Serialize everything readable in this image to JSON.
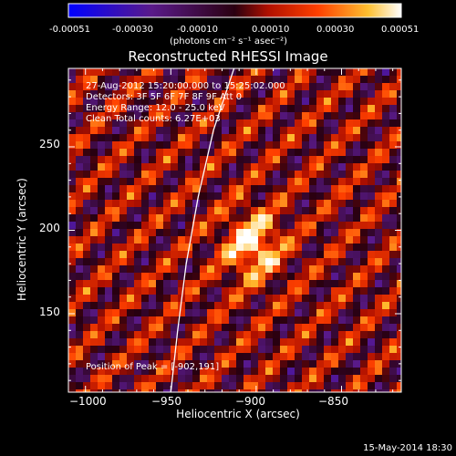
{
  "chart_data": {
    "type": "heatmap",
    "title": "Reconstructed RHESSI Image",
    "xlabel": "Heliocentric X (arcsec)",
    "ylabel": "Heliocentric Y (arcsec)",
    "xlim": [
      -1010,
      -815
    ],
    "ylim": [
      103,
      297
    ],
    "x_ticks": [
      "−1000",
      "−950",
      "−900",
      "−850"
    ],
    "x_tick_values": [
      -1000,
      -950,
      -900,
      -850
    ],
    "y_ticks": [
      "150",
      "200",
      "250"
    ],
    "y_tick_values": [
      150,
      200,
      250
    ],
    "colorbar": {
      "ticks": [
        "-0.00051",
        "-0.00030",
        "-0.00010",
        "0.00010",
        "0.00030",
        "0.00051"
      ],
      "unit_label": "(photons cm⁻² s⁻¹ asec⁻²)",
      "range": [
        -0.00051,
        0.00051
      ]
    },
    "info_lines": [
      "27-Aug-2012 15:20:00.000 to 15:25:02.000",
      "Detectors: 3F 5F 6F 7F 8F 9F Att 0",
      "Energy Range: 12.0 - 25.0 keV",
      "Clean    Total counts: 6.27E+03"
    ],
    "peak_text": "Position of Peak = [-902,191]",
    "peak_position": [
      -902,
      191
    ],
    "limb_points": [
      [
        -913,
        297
      ],
      [
        -925,
        260
      ],
      [
        -934,
        220
      ],
      [
        -941,
        180
      ],
      [
        -946,
        140
      ],
      [
        -950,
        103
      ]
    ],
    "colors": {
      "background": "#000000",
      "limb": "#ffffff"
    }
  },
  "footer_date": "15-May-2014 18:30"
}
